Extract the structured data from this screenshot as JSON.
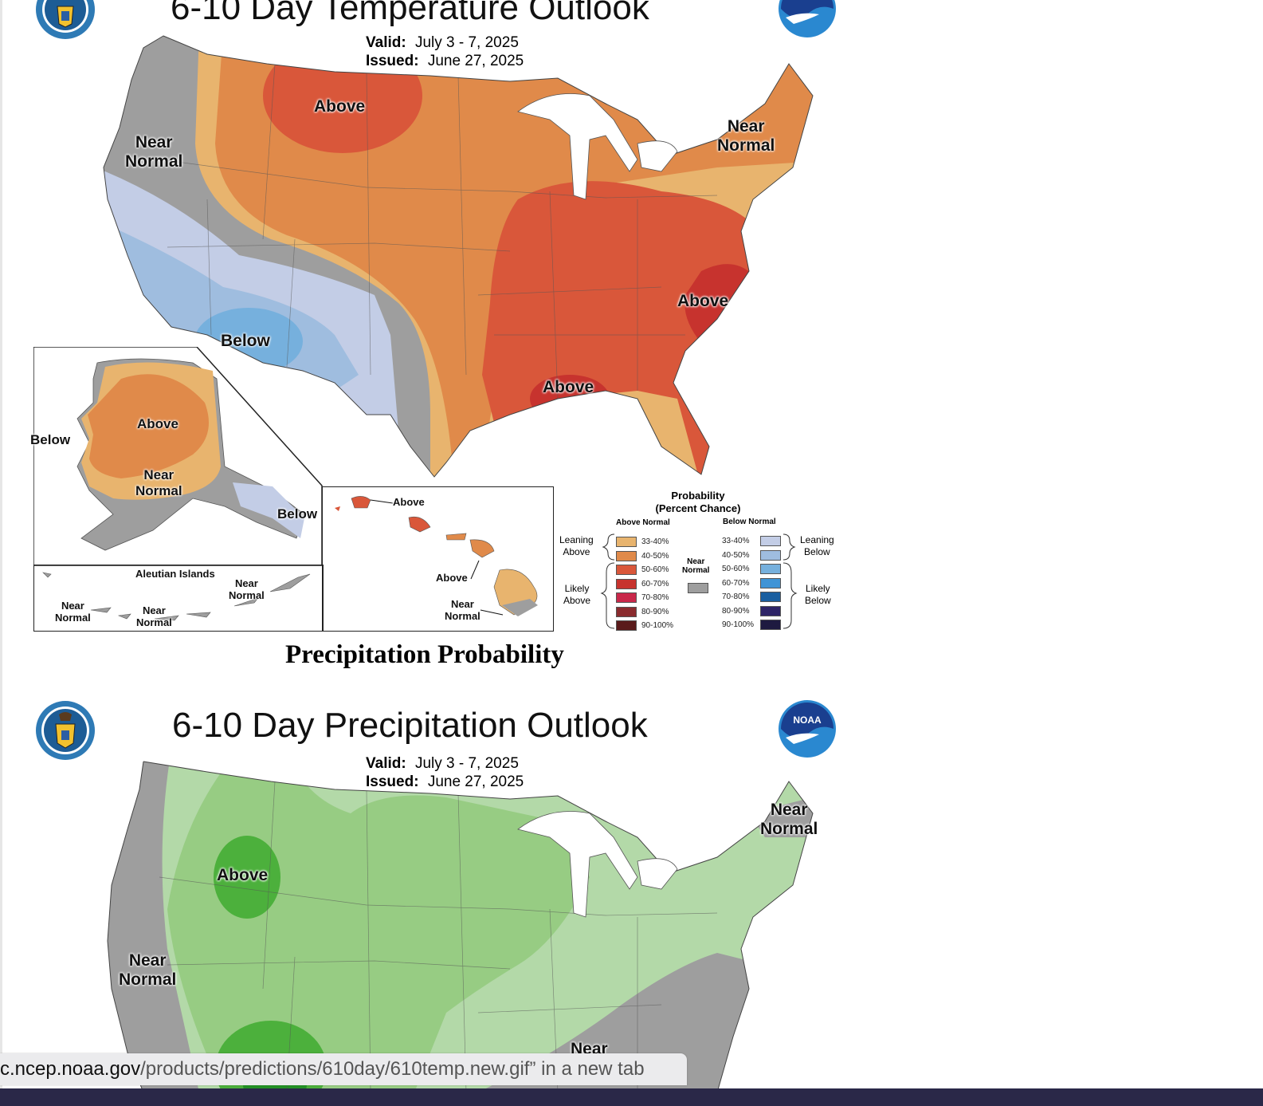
{
  "temp_map": {
    "title": "6-10 Day Temperature Outlook",
    "valid_label": "Valid:",
    "valid_value": "July 3 - 7, 2025",
    "issued_label": "Issued:",
    "issued_value": "June 27, 2025",
    "labels": {
      "above_north": "Above",
      "near_normal_west_1": "Near",
      "near_normal_west_2": "Normal",
      "near_normal_ne_1": "Near",
      "near_normal_ne_2": "Normal",
      "below_sw": "Below",
      "above_se": "Above",
      "above_gulf": "Above"
    },
    "alaska": {
      "above": "Above",
      "below_west": "Below",
      "near_1": "Near",
      "near_2": "Normal",
      "below_se": "Below"
    },
    "aleutian": {
      "title": "Aleutian Islands",
      "near_a_1": "Near",
      "near_a_2": "Normal",
      "near_b_1": "Near",
      "near_b_2": "Normal",
      "near_c_1": "Near",
      "near_c_2": "Normal"
    },
    "hawaii": {
      "above_1": "Above",
      "above_2": "Above",
      "near_1": "Near",
      "near_2": "Normal"
    },
    "legend": {
      "title_1": "Probability",
      "title_2": "(Percent Chance)",
      "above_head": "Above Normal",
      "below_head": "Below Normal",
      "near_head_1": "Near",
      "near_head_2": "Normal",
      "leaning_above_1": "Leaning",
      "leaning_above_2": "Above",
      "likely_above_1": "Likely",
      "likely_above_2": "Above",
      "leaning_below_1": "Leaning",
      "leaning_below_2": "Below",
      "likely_below_1": "Likely",
      "likely_below_2": "Below",
      "ranges": [
        "33-40%",
        "40-50%",
        "50-60%",
        "60-70%",
        "70-80%",
        "80-90%",
        "90-100%"
      ],
      "above_colors": [
        "#e8b46e",
        "#e08a4a",
        "#d9573a",
        "#c7332e",
        "#c9284a",
        "#8a2b2e",
        "#5a1a1a"
      ],
      "below_colors": [
        "#c3cde6",
        "#9fbddf",
        "#76b0dd",
        "#3f94d6",
        "#1a5fa0",
        "#2d2466",
        "#1e1a40"
      ],
      "near_color": "#9e9e9e"
    }
  },
  "precip_heading": "Precipitation Probability",
  "precip_map": {
    "title": "6-10 Day Precipitation Outlook",
    "valid_label": "Valid:",
    "valid_value": "July 3 - 7, 2025",
    "issued_label": "Issued:",
    "issued_value": "June 27, 2025",
    "labels": {
      "near_ne_1": "Near",
      "near_ne_2": "Normal",
      "above_nw": "Above",
      "near_w_1": "Near",
      "near_w_2": "Normal",
      "near_se": "Near"
    },
    "noaa_text": "NOAA"
  },
  "status_bar": {
    "host": "c.ncep.noaa.gov",
    "path": "/products/predictions/610day/610temp.new.gif",
    "suffix": "” in a new tab"
  },
  "icons": [
    "doc-seal-icon",
    "noaa-logo-icon"
  ]
}
